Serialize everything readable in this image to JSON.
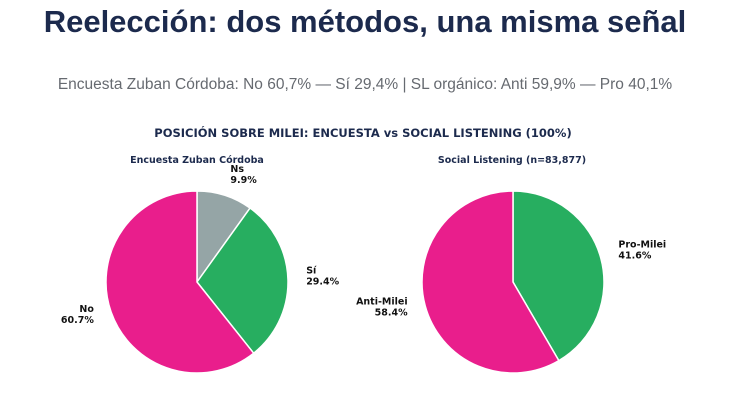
{
  "title": "Reelección: dos métodos, una misma señal",
  "subtitle": "Encuesta Zuban Córdoba: No 60,7% — Sí 29,4% | SL orgánico: Anti 59,9% — Pro 40,1%",
  "chart_suptitle": "POSICIÓN SOBRE MILEI: ENCUESTA vs SOCIAL LISTENING (100%)",
  "chart_data": [
    {
      "type": "pie",
      "title": "Encuesta Zuban Córdoba",
      "slices": [
        {
          "label": "Ns",
          "value": 9.9,
          "display": "9.9%",
          "color": "#95a5a6"
        },
        {
          "label": "Sí",
          "value": 29.4,
          "display": "29.4%",
          "color": "#27ae60"
        },
        {
          "label": "No",
          "value": 60.7,
          "display": "60.7%",
          "color": "#e91e8c"
        }
      ]
    },
    {
      "type": "pie",
      "title": "Social Listening (n=83,877)",
      "slices": [
        {
          "label": "Pro-Milei",
          "value": 41.6,
          "display": "41.6%",
          "color": "#27ae60"
        },
        {
          "label": "Anti-Milei",
          "value": 58.4,
          "display": "58.4%",
          "color": "#e91e8c"
        }
      ]
    }
  ]
}
